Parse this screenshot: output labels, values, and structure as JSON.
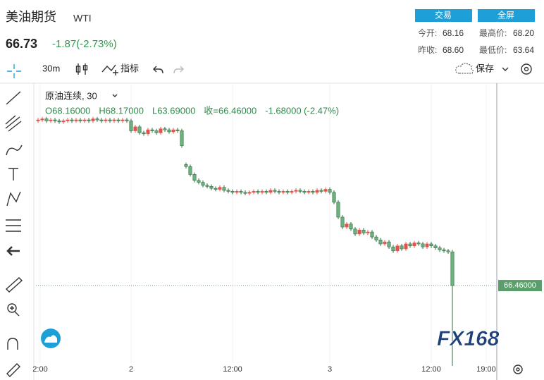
{
  "header": {
    "title": "美油期货",
    "symbol": "WTI",
    "price": "66.73",
    "change": "-1.87(-2.73%)"
  },
  "buttons": [
    "交易",
    "全屏"
  ],
  "stats": [
    {
      "label": "今开:",
      "value": "68.16"
    },
    {
      "label": "最高价:",
      "value": "68.20"
    },
    {
      "label": "昨收:",
      "value": "68.60"
    },
    {
      "label": "最低价:",
      "value": "63.64"
    }
  ],
  "toolbar": {
    "interval": "30m",
    "indicators": "指标",
    "save": "保存"
  },
  "watermark": "FX168",
  "chart_data": {
    "type": "candlestick",
    "title": "原油连续, 30",
    "legend": [
      "O68.16000",
      "H68.17000",
      "L63.69000",
      "收=66.46000",
      "-1.68000 (-2.47%)"
    ],
    "up_color": "#e2534b",
    "down_color": "#6db27e",
    "edge_color": "#2f6b3f",
    "open": [
      68.12,
      68.13,
      68.14,
      68.12,
      68.13,
      68.12,
      68.11,
      68.12,
      68.13,
      68.12,
      68.13,
      68.12,
      68.13,
      68.12,
      68.14,
      68.13,
      68.12,
      68.13,
      68.12,
      68.13,
      68.12,
      68.13,
      68.12,
      68.02,
      68.06,
      68.0,
      67.99,
      68.03,
      68.02,
      68.0,
      68.04,
      68.03,
      68.01,
      68.03,
      68.02,
      67.68,
      67.66,
      67.58,
      67.52,
      67.5,
      67.47,
      67.46,
      67.44,
      67.43,
      67.45,
      67.42,
      67.41,
      67.4,
      67.41,
      67.4,
      67.39,
      67.4,
      67.41,
      67.4,
      67.41,
      67.4,
      67.42,
      67.41,
      67.4,
      67.41,
      67.4,
      67.41,
      67.42,
      67.41,
      67.4,
      67.41,
      67.4,
      67.42,
      67.41,
      67.43,
      67.4,
      67.3,
      67.15,
      67.05,
      67.08,
      67.03,
      66.98,
      67.02,
      66.99,
      67.0,
      66.95,
      66.92,
      66.88,
      66.9,
      66.85,
      66.81,
      66.86,
      66.83,
      66.88,
      66.86,
      66.89,
      66.88,
      66.85,
      66.88,
      66.86,
      66.84,
      66.82,
      66.81,
      66.8
    ],
    "high": [
      68.15,
      68.16,
      68.16,
      68.15,
      68.15,
      68.14,
      68.14,
      68.15,
      68.15,
      68.15,
      68.15,
      68.15,
      68.15,
      68.16,
      68.16,
      68.15,
      68.15,
      68.15,
      68.15,
      68.15,
      68.15,
      68.15,
      68.14,
      68.08,
      68.08,
      68.02,
      68.05,
      68.05,
      68.04,
      68.06,
      68.06,
      68.05,
      68.05,
      68.05,
      68.04,
      67.7,
      67.68,
      67.6,
      67.54,
      67.52,
      67.49,
      67.48,
      67.46,
      67.47,
      67.47,
      67.44,
      67.43,
      67.43,
      67.43,
      67.42,
      67.42,
      67.43,
      67.43,
      67.43,
      67.43,
      67.44,
      67.44,
      67.43,
      67.43,
      67.43,
      67.43,
      67.44,
      67.44,
      67.43,
      67.43,
      67.43,
      67.44,
      67.44,
      67.45,
      67.45,
      67.42,
      67.32,
      67.17,
      67.1,
      67.1,
      67.05,
      67.04,
      67.04,
      67.02,
      67.02,
      66.97,
      66.94,
      66.92,
      66.92,
      66.87,
      66.88,
      66.88,
      66.9,
      66.9,
      66.91,
      66.91,
      66.9,
      66.9,
      66.9,
      66.88,
      66.86,
      66.84,
      66.83,
      66.82
    ],
    "low": [
      68.1,
      68.11,
      68.1,
      68.1,
      68.1,
      68.09,
      68.09,
      68.1,
      68.1,
      68.1,
      68.1,
      68.1,
      68.1,
      68.1,
      68.11,
      68.1,
      68.1,
      68.1,
      68.1,
      68.1,
      68.1,
      68.1,
      68.0,
      68.0,
      67.98,
      67.97,
      67.97,
      68.0,
      67.98,
      67.98,
      68.01,
      67.99,
      67.99,
      68.0,
      67.85,
      67.64,
      67.56,
      67.5,
      67.48,
      67.45,
      67.44,
      67.42,
      67.41,
      67.41,
      67.4,
      67.39,
      67.38,
      67.38,
      67.38,
      67.37,
      67.37,
      67.38,
      67.38,
      67.38,
      67.38,
      67.38,
      67.39,
      67.38,
      67.38,
      67.38,
      67.38,
      67.39,
      67.39,
      67.38,
      67.38,
      67.38,
      67.38,
      67.39,
      67.39,
      67.38,
      67.28,
      67.13,
      67.03,
      67.03,
      67.01,
      66.96,
      66.96,
      66.97,
      66.97,
      66.93,
      66.9,
      66.86,
      66.86,
      66.83,
      66.79,
      66.79,
      66.81,
      66.81,
      66.84,
      66.84,
      66.86,
      66.83,
      66.83,
      66.84,
      66.82,
      66.8,
      66.79,
      66.78,
      65.65
    ],
    "close": [
      68.13,
      68.14,
      68.12,
      68.13,
      68.12,
      68.11,
      68.12,
      68.13,
      68.12,
      68.13,
      68.12,
      68.13,
      68.12,
      68.14,
      68.13,
      68.12,
      68.13,
      68.12,
      68.13,
      68.12,
      68.13,
      68.12,
      68.02,
      68.06,
      68.0,
      67.99,
      68.03,
      68.02,
      68.0,
      68.04,
      68.03,
      68.01,
      68.03,
      68.02,
      67.87,
      67.66,
      67.58,
      67.52,
      67.5,
      67.47,
      67.46,
      67.44,
      67.43,
      67.45,
      67.42,
      67.41,
      67.4,
      67.41,
      67.4,
      67.39,
      67.4,
      67.41,
      67.4,
      67.41,
      67.4,
      67.42,
      67.41,
      67.4,
      67.41,
      67.4,
      67.41,
      67.42,
      67.41,
      67.4,
      67.41,
      67.4,
      67.42,
      67.41,
      67.43,
      67.4,
      67.3,
      67.15,
      67.05,
      67.08,
      67.03,
      66.98,
      67.02,
      66.99,
      67.0,
      66.95,
      66.92,
      66.88,
      66.9,
      66.85,
      66.81,
      66.86,
      66.83,
      66.88,
      66.86,
      66.89,
      66.88,
      66.85,
      66.88,
      66.86,
      66.84,
      66.82,
      66.81,
      66.8,
      66.46
    ],
    "xlim": [
      -0.5,
      108.5
    ],
    "ylim": [
      65.7,
      68.5
    ],
    "xticks": [
      {
        "value": 0.5,
        "label": "2:00"
      },
      {
        "value": 22,
        "label": "2"
      },
      {
        "value": 46,
        "label": "12:00"
      },
      {
        "value": 69,
        "label": "3"
      },
      {
        "value": 93,
        "label": "12:00"
      },
      {
        "value": 106,
        "label": "19:00"
      }
    ],
    "last_price": {
      "value": 66.46,
      "label": "66.46000"
    },
    "last_price_color": "#5c9d6c"
  }
}
